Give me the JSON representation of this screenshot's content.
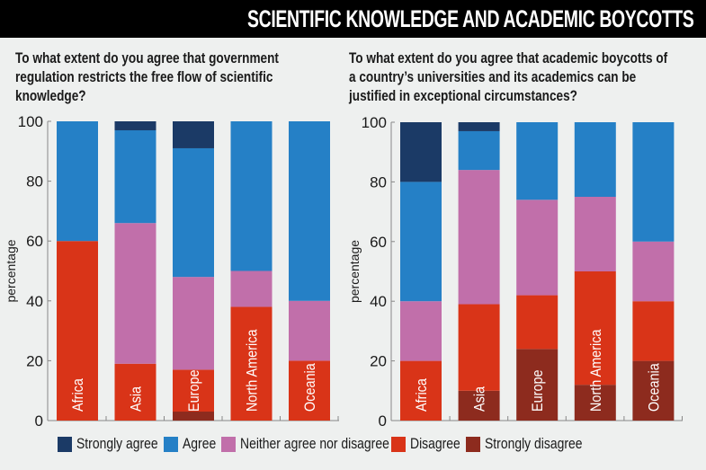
{
  "title": "SCIENTIFIC KNOWLEDGE AND ACADEMIC BOYCOTTS",
  "legend": [
    {
      "label": "Strongly agree",
      "color": "#1b3a66"
    },
    {
      "label": "Agree",
      "color": "#2580c6"
    },
    {
      "label": "Neither agree nor disagree",
      "color": "#c16faa"
    },
    {
      "label": "Disagree",
      "color": "#d93418"
    },
    {
      "label": "Strongly disagree",
      "color": "#8d2b1e"
    }
  ],
  "chart_data": [
    {
      "type": "bar",
      "stacked": true,
      "title": "To what extent do you agree that government regulation restricts the free flow of scientific knowledge?",
      "ylabel": "percentage",
      "ylim": [
        0,
        100
      ],
      "yticks": [
        "0",
        "20",
        "40",
        "60",
        "80",
        "100"
      ],
      "categories": [
        "Africa",
        "Asia",
        "Europe",
        "North America",
        "Oceania"
      ],
      "series": [
        {
          "name": "Strongly disagree",
          "values": [
            0,
            0,
            3,
            0,
            0
          ]
        },
        {
          "name": "Disagree",
          "values": [
            60,
            19,
            14,
            38,
            20
          ]
        },
        {
          "name": "Neither agree nor disagree",
          "values": [
            0,
            47,
            31,
            12,
            20
          ]
        },
        {
          "name": "Agree",
          "values": [
            40,
            31,
            43,
            50,
            60
          ]
        },
        {
          "name": "Strongly agree",
          "values": [
            0,
            3,
            9,
            0,
            0
          ]
        }
      ]
    },
    {
      "type": "bar",
      "stacked": true,
      "title": "To what extent do you agree that academic boycotts of a country’s universities and its academics can be justified in exceptional circumstances?",
      "ylabel": "percentage",
      "ylim": [
        0,
        100
      ],
      "yticks": [
        "0",
        "20",
        "40",
        "60",
        "80",
        "100"
      ],
      "categories": [
        "Africa",
        "Asia",
        "Europe",
        "North America",
        "Oceania"
      ],
      "series": [
        {
          "name": "Strongly disagree",
          "values": [
            0,
            10,
            24,
            12,
            20
          ]
        },
        {
          "name": "Disagree",
          "values": [
            20,
            29,
            18,
            38,
            20
          ]
        },
        {
          "name": "Neither agree nor disagree",
          "values": [
            20,
            45,
            32,
            25,
            20
          ]
        },
        {
          "name": "Agree",
          "values": [
            40,
            13,
            26,
            25,
            40
          ]
        },
        {
          "name": "Strongly agree",
          "values": [
            20,
            3,
            0,
            0,
            0
          ]
        }
      ]
    }
  ]
}
